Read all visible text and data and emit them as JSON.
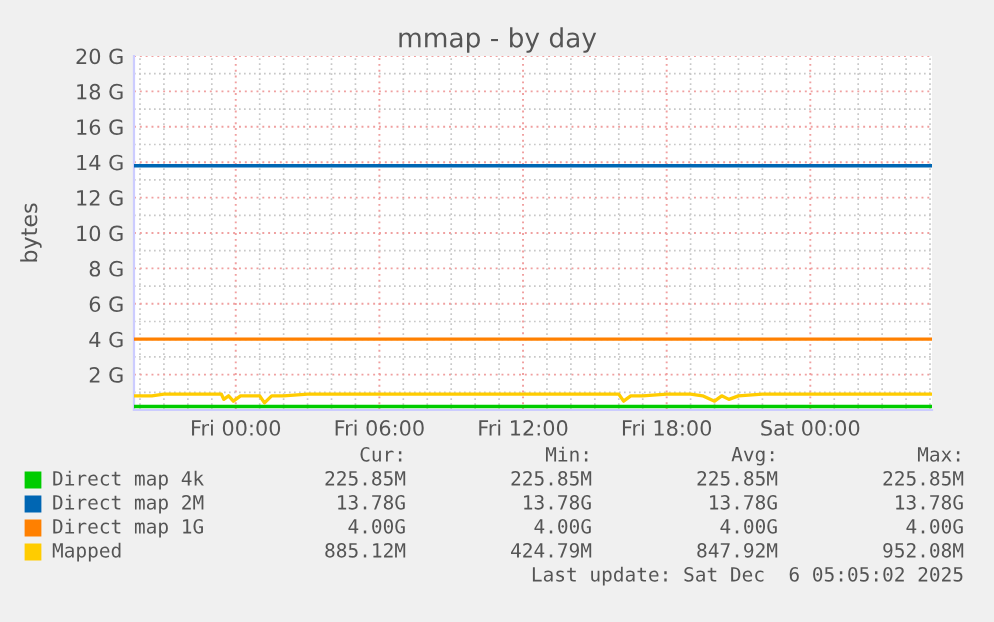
{
  "chart_data": {
    "type": "line",
    "title": "mmap - by day",
    "ylabel": "bytes",
    "xlim": [
      "2025-12-04T19:45",
      "2025-12-06T05:05"
    ],
    "xticks": [
      {
        "value": "2025-12-05T00:00",
        "label": "Fri 00:00"
      },
      {
        "value": "2025-12-05T06:00",
        "label": "Fri 06:00"
      },
      {
        "value": "2025-12-05T12:00",
        "label": "Fri 12:00"
      },
      {
        "value": "2025-12-05T18:00",
        "label": "Fri 18:00"
      },
      {
        "value": "2025-12-06T00:00",
        "label": "Sat 00:00"
      }
    ],
    "ylim": [
      0,
      20
    ],
    "yticks": [
      {
        "value": 2,
        "label": "2 G"
      },
      {
        "value": 4,
        "label": "4 G"
      },
      {
        "value": 6,
        "label": "6 G"
      },
      {
        "value": 8,
        "label": "8 G"
      },
      {
        "value": 10,
        "label": "10 G"
      },
      {
        "value": 12,
        "label": "12 G"
      },
      {
        "value": 14,
        "label": "14 G"
      },
      {
        "value": 16,
        "label": "16 G"
      },
      {
        "value": 18,
        "label": "18 G"
      },
      {
        "value": 20,
        "label": "20 G"
      }
    ],
    "grid": true,
    "legend": "bottom",
    "series": [
      {
        "name": "Direct map 4k",
        "color": "#00cc00",
        "x": [
          "2025-12-04T19:45",
          "2025-12-06T05:05"
        ],
        "values": [
          0.2,
          0.2
        ]
      },
      {
        "name": "Direct map 2M",
        "color": "#0066b3",
        "x": [
          "2025-12-04T19:45",
          "2025-12-06T05:05"
        ],
        "values": [
          13.8,
          13.8
        ]
      },
      {
        "name": "Direct map 1G",
        "color": "#ff8000",
        "x": [
          "2025-12-04T19:45",
          "2025-12-06T05:05"
        ],
        "values": [
          4.0,
          4.0
        ]
      },
      {
        "name": "Mapped",
        "color": "#ffcc00",
        "x": [
          "2025-12-04T19:45",
          "2025-12-04T20:30",
          "2025-12-04T21:00",
          "2025-12-04T22:00",
          "2025-12-04T23:00",
          "2025-12-04T23:24",
          "2025-12-04T23:30",
          "2025-12-04T23:42",
          "2025-12-04T23:54",
          "2025-12-05T00:12",
          "2025-12-05T01:00",
          "2025-12-05T01:12",
          "2025-12-05T01:30",
          "2025-12-05T02:00",
          "2025-12-05T03:00",
          "2025-12-05T04:00",
          "2025-12-05T05:00",
          "2025-12-05T06:00",
          "2025-12-05T06:30",
          "2025-12-05T07:00",
          "2025-12-05T10:00",
          "2025-12-05T12:00",
          "2025-12-05T15:00",
          "2025-12-05T16:00",
          "2025-12-05T16:12",
          "2025-12-05T16:30",
          "2025-12-05T17:00",
          "2025-12-05T18:00",
          "2025-12-05T19:00",
          "2025-12-05T19:30",
          "2025-12-05T20:00",
          "2025-12-05T20:18",
          "2025-12-05T20:36",
          "2025-12-05T21:00",
          "2025-12-05T22:00",
          "2025-12-05T23:00",
          "2025-12-06T00:00",
          "2025-12-06T02:00",
          "2025-12-06T05:05"
        ],
        "values": [
          0.8,
          0.8,
          0.9,
          0.9,
          0.9,
          0.9,
          0.6,
          0.8,
          0.5,
          0.8,
          0.8,
          0.4,
          0.8,
          0.8,
          0.9,
          0.9,
          0.9,
          0.9,
          0.9,
          0.9,
          0.9,
          0.9,
          0.9,
          0.9,
          0.5,
          0.8,
          0.8,
          0.9,
          0.9,
          0.8,
          0.5,
          0.8,
          0.6,
          0.8,
          0.9,
          0.9,
          0.9,
          0.9,
          0.9
        ]
      }
    ],
    "annotations": [
      "Cur:",
      "Min:",
      "Avg:",
      "Max:",
      "225.85M",
      "225.85M",
      "225.85M",
      "225.85M",
      "13.78G",
      "13.78G",
      "13.78G",
      "13.78G",
      "4.00G",
      "4.00G",
      "4.00G",
      "4.00G",
      "885.12M",
      "424.79M",
      "847.92M",
      "952.08M",
      "Last update: Sat Dec  6 05:05:02 2025"
    ]
  }
}
